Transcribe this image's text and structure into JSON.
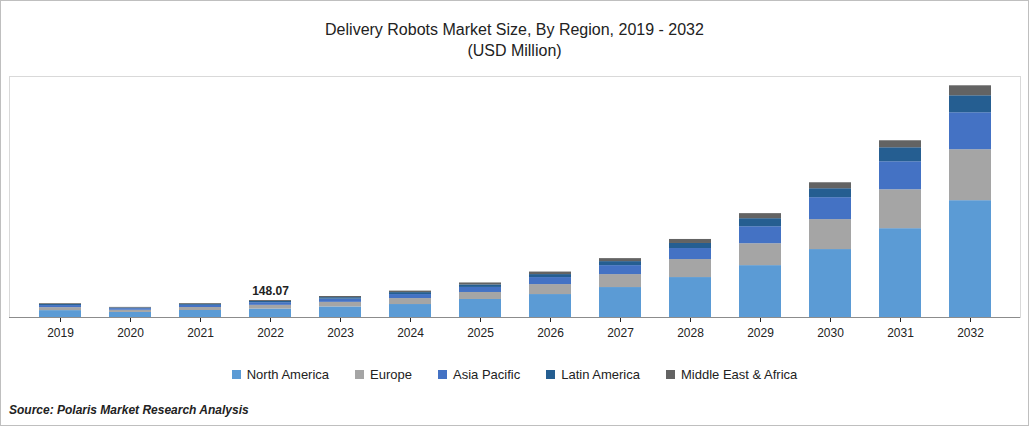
{
  "chart_data": {
    "type": "bar",
    "stacked": true,
    "title": "Delivery Robots Market Size, By Region, 2019 - 2032",
    "subtitle": "(USD Million)",
    "source": "Source: Polaris Market Research Analysis",
    "categories": [
      "2019",
      "2020",
      "2021",
      "2022",
      "2023",
      "2024",
      "2025",
      "2026",
      "2027",
      "2028",
      "2029",
      "2030",
      "2031",
      "2032"
    ],
    "series": [
      {
        "name": "North America",
        "color": "#5B9BD5",
        "values": [
          60,
          44,
          61,
          74,
          92,
          113,
          157,
          200,
          261,
          348,
          452,
          592,
          774,
          1018
        ]
      },
      {
        "name": "Europe",
        "color": "#A5A5A5",
        "values": [
          26,
          19,
          26,
          32,
          40,
          52,
          61,
          87,
          113,
          157,
          191,
          261,
          339,
          444
        ]
      },
      {
        "name": "Asia Pacific",
        "color": "#4472C4",
        "values": [
          18,
          14,
          19,
          23,
          28,
          35,
          44,
          61,
          78,
          96,
          148,
          191,
          244,
          322
        ]
      },
      {
        "name": "Latin America",
        "color": "#255E91",
        "values": [
          9,
          6,
          9,
          11,
          13,
          17,
          22,
          26,
          35,
          44,
          70,
          78,
          122,
          148
        ]
      },
      {
        "name": "Middle East & Africa",
        "color": "#636363",
        "values": [
          7,
          5,
          7,
          8.07,
          10,
          13,
          17,
          22,
          26,
          35,
          44,
          52,
          61,
          87
        ]
      }
    ],
    "annotations": [
      {
        "category": "2022",
        "value": 148.07,
        "label": "148.07"
      }
    ],
    "ylim": [
      0,
      2100
    ],
    "yticks": [],
    "tick_labels": "x",
    "legend": "bottom",
    "grid": false
  }
}
